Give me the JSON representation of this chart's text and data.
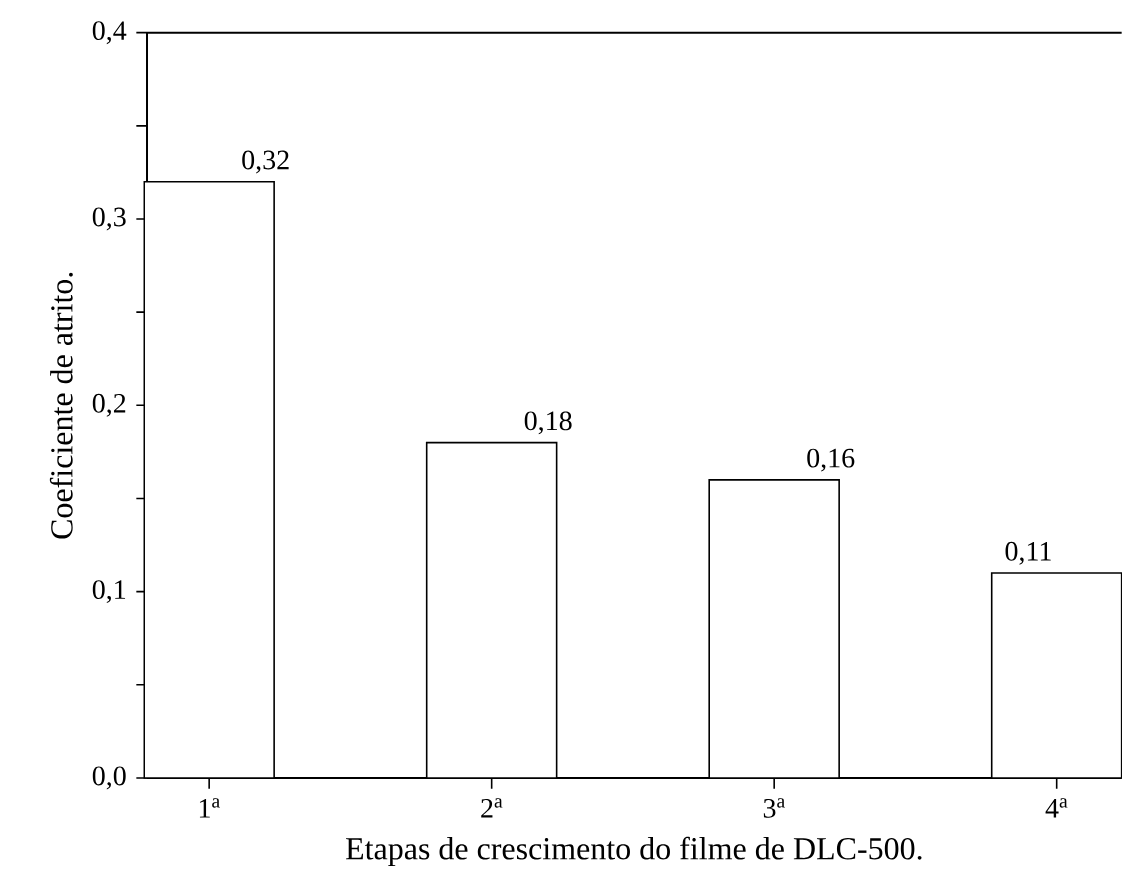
{
  "chart_data": {
    "type": "bar",
    "xlabel": "Etapas de crescimento do filme de DLC-500.",
    "ylabel": "Coeficiente de atrito.",
    "categories": [
      "1$^{a}$",
      "2$^{a}$",
      "3$^{a}$",
      "4$^{a}$"
    ],
    "values": [
      0.32,
      0.18,
      0.16,
      0.11
    ],
    "value_labels": [
      "0,32",
      "0,18",
      "0,16",
      "0,11"
    ],
    "color": "#000000",
    "ylim": [
      0,
      0.4
    ],
    "yticks": [
      {
        "value": 0,
        "label": "0,0"
      },
      {
        "value": 0.05,
        "label": null
      },
      {
        "value": 0.1,
        "label": "0,1"
      },
      {
        "value": 0.15,
        "label": null
      },
      {
        "value": 0.2,
        "label": "0,2"
      },
      {
        "value": 0.25,
        "label": null
      },
      {
        "value": 0.3,
        "label": "0,3"
      },
      {
        "value": 0.35,
        "label": null
      },
      {
        "value": 0.4,
        "label": "0,4"
      }
    ]
  }
}
